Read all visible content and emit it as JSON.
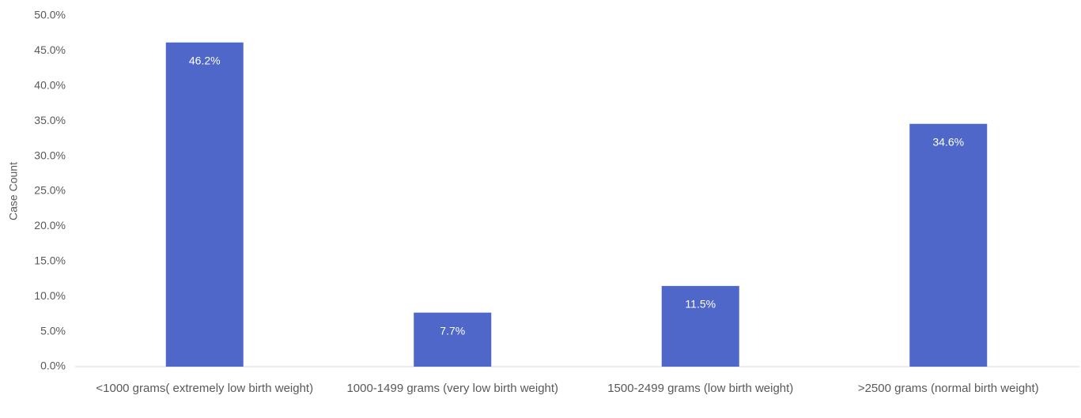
{
  "chart_data": {
    "type": "bar",
    "y_label": "Case Count",
    "categories": [
      "<1000 grams( extremely low birth weight)",
      "1000-1499 grams (very low birth weight)",
      "1500-2499 grams (low birth weight)",
      ">2500 grams (normal birth weight)"
    ],
    "values": [
      46.2,
      7.7,
      11.5,
      34.6
    ],
    "value_labels": [
      "46.2%",
      "7.7%",
      "11.5%",
      "34.6%"
    ],
    "color": "#4e67c8",
    "ylim": [
      0,
      50
    ],
    "yticks": [
      {
        "value": 0,
        "label": "0.0%"
      },
      {
        "value": 5,
        "label": "5.0%"
      },
      {
        "value": 10,
        "label": "10.0%"
      },
      {
        "value": 15,
        "label": "15.0%"
      },
      {
        "value": 20,
        "label": "20.0%"
      },
      {
        "value": 25,
        "label": "25.0%"
      },
      {
        "value": 30,
        "label": "30.0%"
      },
      {
        "value": 35,
        "label": "35.0%"
      },
      {
        "value": 40,
        "label": "40.0%"
      },
      {
        "value": 45,
        "label": "45.0%"
      },
      {
        "value": 50,
        "label": "50.0%"
      }
    ],
    "grid": false
  }
}
